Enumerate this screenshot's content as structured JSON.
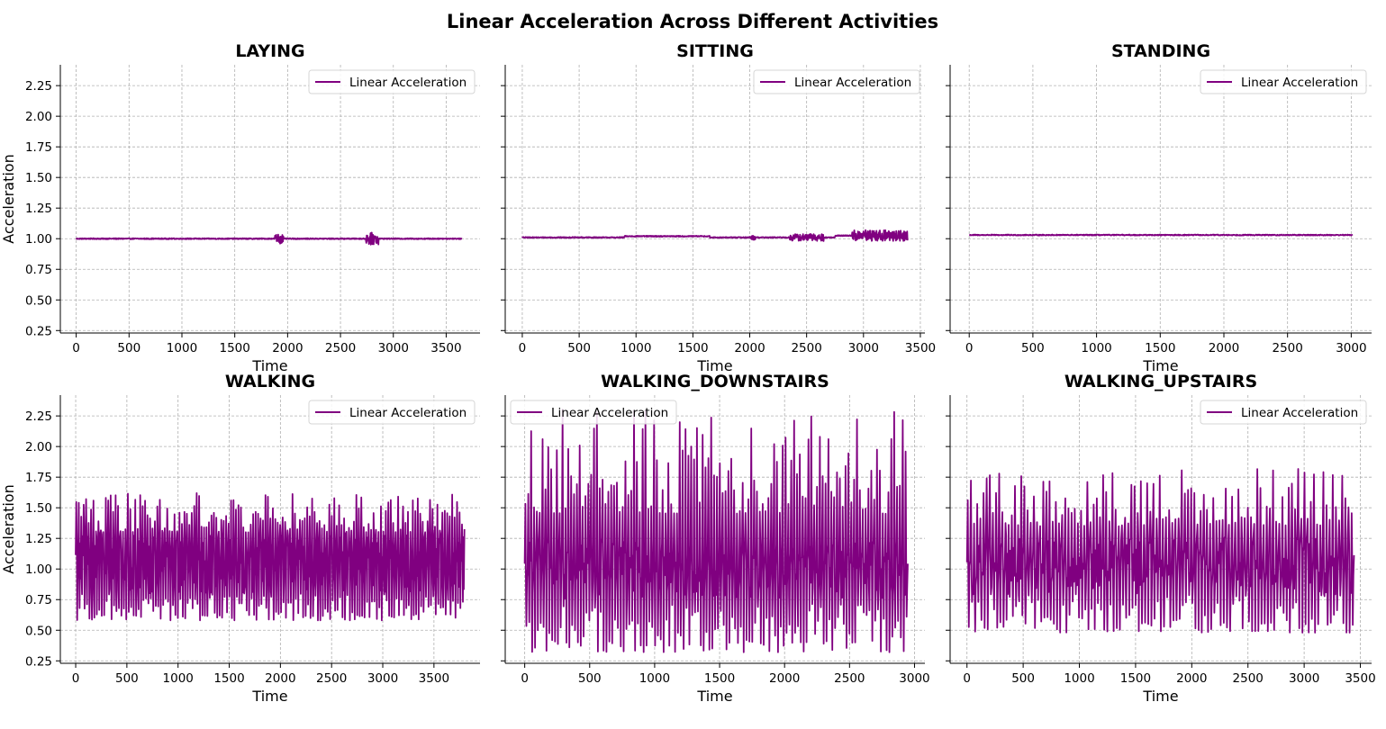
{
  "figure_title": "Linear Acceleration Across Different Activities",
  "colors": {
    "line": "#800080",
    "grid": "#b0b0b0",
    "axis": "#000000"
  },
  "chart_data": [
    {
      "type": "line",
      "title": "LAYING",
      "xlabel": "Time",
      "ylabel": "Acceleration",
      "xlim": [
        -150,
        3820
      ],
      "ylim": [
        0.23,
        2.42
      ],
      "xticks": [
        0,
        500,
        1000,
        1500,
        2000,
        2500,
        3000,
        3500
      ],
      "xtick_labels": [
        "0",
        "500",
        "1000",
        "1500",
        "2000",
        "2500",
        "3000",
        "3500"
      ],
      "yticks": [
        0.25,
        0.5,
        0.75,
        1.0,
        1.25,
        1.5,
        1.75,
        2.0,
        2.25
      ],
      "ytick_labels": [
        "0.25",
        "0.50",
        "0.75",
        "1.00",
        "1.25",
        "1.50",
        "1.75",
        "2.00",
        "2.25"
      ],
      "show_yticklabels": true,
      "grid": true,
      "legend_position": "upper-right",
      "series": [
        {
          "name": "Linear Acceleration",
          "x_range": [
            0,
            3650
          ],
          "baseline": 1.0,
          "amplitude": 0.004,
          "bursts": [
            {
              "x": [
                1880,
                1960
              ],
              "amplitude": 0.04
            },
            {
              "x": [
                2740,
                2860
              ],
              "amplitude": 0.05
            }
          ]
        }
      ]
    },
    {
      "type": "line",
      "title": "SITTING",
      "xlabel": "Time",
      "ylabel": "",
      "xlim": [
        -150,
        3540
      ],
      "ylim": [
        0.23,
        2.42
      ],
      "xticks": [
        0,
        500,
        1000,
        1500,
        2000,
        2500,
        3000,
        3500
      ],
      "xtick_labels": [
        "0",
        "500",
        "1000",
        "1500",
        "2000",
        "2500",
        "3000",
        "3500"
      ],
      "yticks": [
        0.25,
        0.5,
        0.75,
        1.0,
        1.25,
        1.5,
        1.75,
        2.0,
        2.25
      ],
      "ytick_labels": [],
      "show_yticklabels": false,
      "grid": true,
      "legend_position": "upper-right",
      "series": [
        {
          "name": "Linear Acceleration",
          "x_range": [
            0,
            3390
          ],
          "segments": [
            {
              "x": [
                0,
                900
              ],
              "level": 1.01
            },
            {
              "x": [
                900,
                1650
              ],
              "level": 1.02
            },
            {
              "x": [
                1650,
                2750
              ],
              "level": 1.01
            },
            {
              "x": [
                2750,
                3390
              ],
              "level": 1.025
            }
          ],
          "amplitude": 0.004,
          "bursts": [
            {
              "x": [
                2000,
                2050
              ],
              "amplitude": 0.02
            },
            {
              "x": [
                2350,
                2650
              ],
              "amplitude": 0.03
            },
            {
              "x": [
                2900,
                3390
              ],
              "amplitude": 0.045
            }
          ]
        }
      ]
    },
    {
      "type": "line",
      "title": "STANDING",
      "xlabel": "Time",
      "ylabel": "",
      "xlim": [
        -150,
        3160
      ],
      "ylim": [
        0.23,
        2.42
      ],
      "xticks": [
        0,
        500,
        1000,
        1500,
        2000,
        2500,
        3000
      ],
      "xtick_labels": [
        "0",
        "500",
        "1000",
        "1500",
        "2000",
        "2500",
        "3000"
      ],
      "yticks": [
        0.25,
        0.5,
        0.75,
        1.0,
        1.25,
        1.5,
        1.75,
        2.0,
        2.25
      ],
      "ytick_labels": [],
      "show_yticklabels": false,
      "grid": true,
      "legend_position": "upper-right",
      "series": [
        {
          "name": "Linear Acceleration",
          "x_range": [
            0,
            3010
          ],
          "baseline": 1.03,
          "amplitude": 0.004,
          "bursts": []
        }
      ]
    },
    {
      "type": "line",
      "title": "WALKING",
      "xlabel": "Time",
      "ylabel": "Acceleration",
      "xlim": [
        -150,
        3950
      ],
      "ylim": [
        0.23,
        2.42
      ],
      "xticks": [
        0,
        500,
        1000,
        1500,
        2000,
        2500,
        3000,
        3500
      ],
      "xtick_labels": [
        "0",
        "500",
        "1000",
        "1500",
        "2000",
        "2500",
        "3000",
        "3500"
      ],
      "yticks": [
        0.25,
        0.5,
        0.75,
        1.0,
        1.25,
        1.5,
        1.75,
        2.0,
        2.25
      ],
      "ytick_labels": [
        "0.25",
        "0.50",
        "0.75",
        "1.00",
        "1.25",
        "1.50",
        "1.75",
        "2.00",
        "2.25"
      ],
      "show_yticklabels": true,
      "grid": true,
      "legend_position": "upper-right",
      "series": [
        {
          "name": "Linear Acceleration",
          "x_range": [
            0,
            3800
          ],
          "baseline": 1.05,
          "peak_range": [
            1.3,
            1.62
          ],
          "trough_range": [
            0.58,
            0.8
          ],
          "cycle": 24
        }
      ]
    },
    {
      "type": "line",
      "title": "WALKING_DOWNSTAIRS",
      "xlabel": "Time",
      "ylabel": "",
      "xlim": [
        -150,
        3080
      ],
      "ylim": [
        0.23,
        2.42
      ],
      "xticks": [
        0,
        500,
        1000,
        1500,
        2000,
        2500,
        3000
      ],
      "xtick_labels": [
        "0",
        "500",
        "1000",
        "1500",
        "2000",
        "2500",
        "3000"
      ],
      "yticks": [
        0.25,
        0.5,
        0.75,
        1.0,
        1.25,
        1.5,
        1.75,
        2.0,
        2.25
      ],
      "ytick_labels": [],
      "show_yticklabels": false,
      "grid": true,
      "legend_position": "upper-left",
      "series": [
        {
          "name": "Linear Acceleration",
          "x_range": [
            0,
            2950
          ],
          "baseline": 1.0,
          "peak_range": [
            1.45,
            2.32
          ],
          "trough_range": [
            0.32,
            0.72
          ],
          "cycle": 22
        }
      ]
    },
    {
      "type": "line",
      "title": "WALKING_UPSTAIRS",
      "xlabel": "Time",
      "ylabel": "",
      "xlim": [
        -150,
        3600
      ],
      "ylim": [
        0.23,
        2.42
      ],
      "xticks": [
        0,
        500,
        1000,
        1500,
        2000,
        2500,
        3000,
        3500
      ],
      "xtick_labels": [
        "0",
        "500",
        "1000",
        "1500",
        "2000",
        "2500",
        "3000",
        "3500"
      ],
      "yticks": [
        0.25,
        0.5,
        0.75,
        1.0,
        1.25,
        1.5,
        1.75,
        2.0,
        2.25
      ],
      "ytick_labels": [],
      "show_yticklabels": false,
      "grid": true,
      "legend_position": "upper-right",
      "series": [
        {
          "name": "Linear Acceleration",
          "x_range": [
            0,
            3450
          ],
          "baseline": 1.03,
          "peak_range": [
            1.35,
            1.82
          ],
          "trough_range": [
            0.48,
            0.8
          ],
          "cycle": 28
        }
      ]
    }
  ]
}
